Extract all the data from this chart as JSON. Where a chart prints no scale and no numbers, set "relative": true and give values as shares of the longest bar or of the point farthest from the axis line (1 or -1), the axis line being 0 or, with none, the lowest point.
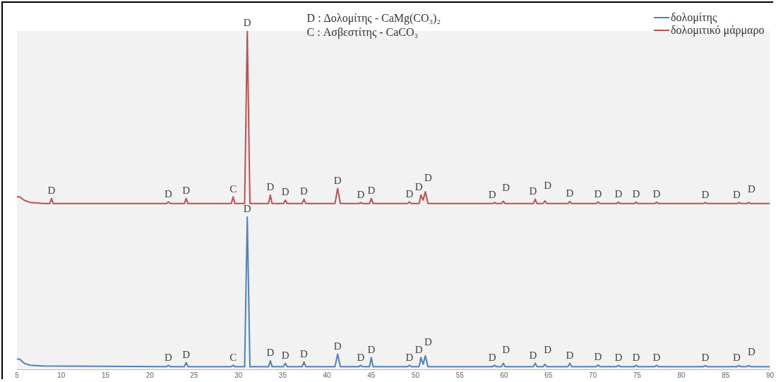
{
  "chart_data": {
    "type": "line",
    "relative": true,
    "xlim": [
      5,
      90
    ],
    "xticks": [
      5,
      10,
      15,
      20,
      25,
      30,
      35,
      40,
      45,
      50,
      55,
      60,
      65,
      70,
      75,
      80,
      85,
      90
    ],
    "tick_labels": "x",
    "grid": false,
    "legend": "top right",
    "marker": "none",
    "line_style": "solid",
    "series": [
      {
        "name": "δολομίτης",
        "color": "#4f81bd",
        "x": [
          5,
          5.3,
          5.8,
          6.5,
          8,
          21.9,
          22.1,
          22.3,
          23.9,
          24.1,
          24.3,
          29.2,
          29.4,
          29.6,
          30.7,
          31.0,
          31.3,
          33.4,
          33.6,
          33.8,
          35.1,
          35.3,
          35.5,
          37.2,
          37.4,
          37.6,
          40.9,
          41.2,
          41.5,
          43.6,
          43.8,
          44.0,
          44.8,
          45.0,
          45.2,
          49.1,
          49.3,
          49.5,
          50.4,
          50.6,
          50.85,
          51.1,
          51.4,
          58.7,
          58.9,
          59.1,
          59.7,
          59.9,
          60.1,
          63.3,
          63.5,
          63.7,
          64.4,
          64.6,
          64.8,
          67.2,
          67.4,
          67.6,
          70.4,
          70.6,
          70.8,
          72.7,
          72.9,
          73.1,
          74.7,
          74.9,
          75.1,
          77.0,
          77.2,
          77.4,
          82.5,
          82.7,
          82.9,
          86.3,
          86.5,
          86.7,
          87.4,
          87.6,
          87.8,
          90
        ],
        "values": [
          0.03,
          0.03,
          0.018,
          0.012,
          0.01,
          0.008,
          0.012,
          0.008,
          0.008,
          0.02,
          0.008,
          0.008,
          0.012,
          0.008,
          0.008,
          0.45,
          0.008,
          0.008,
          0.025,
          0.008,
          0.008,
          0.018,
          0.008,
          0.008,
          0.022,
          0.008,
          0.008,
          0.045,
          0.008,
          0.008,
          0.012,
          0.008,
          0.008,
          0.035,
          0.008,
          0.008,
          0.012,
          0.008,
          0.008,
          0.035,
          0.015,
          0.04,
          0.008,
          0.008,
          0.012,
          0.008,
          0.008,
          0.018,
          0.008,
          0.008,
          0.018,
          0.008,
          0.008,
          0.015,
          0.008,
          0.008,
          0.018,
          0.008,
          0.008,
          0.013,
          0.008,
          0.008,
          0.012,
          0.008,
          0.008,
          0.012,
          0.008,
          0.008,
          0.012,
          0.008,
          0.008,
          0.011,
          0.008,
          0.008,
          0.011,
          0.008,
          0.008,
          0.011,
          0.008,
          0.008
        ]
      },
      {
        "name": "δολομιτικό μάρμαρο",
        "color": "#c0504d",
        "x": [
          5,
          5.3,
          5.8,
          6.5,
          8,
          8.7,
          8.9,
          9.1,
          21.9,
          22.1,
          22.3,
          23.9,
          24.1,
          24.3,
          29.2,
          29.4,
          29.6,
          30.7,
          31.0,
          31.3,
          33.4,
          33.6,
          33.8,
          35.1,
          35.3,
          35.5,
          37.2,
          37.4,
          37.6,
          40.9,
          41.2,
          41.5,
          43.6,
          43.8,
          44.0,
          44.8,
          45.0,
          45.2,
          49.1,
          49.3,
          49.5,
          50.4,
          50.6,
          50.85,
          51.1,
          51.4,
          58.7,
          58.9,
          59.1,
          59.7,
          59.9,
          60.1,
          63.3,
          63.5,
          63.7,
          64.4,
          64.6,
          64.8,
          67.2,
          67.4,
          67.6,
          70.4,
          70.6,
          70.8,
          72.7,
          72.9,
          73.1,
          74.7,
          74.9,
          75.1,
          77.0,
          77.2,
          77.4,
          82.5,
          82.7,
          82.9,
          86.3,
          86.5,
          86.7,
          87.4,
          87.6,
          87.8,
          90
        ],
        "values": [
          0.51,
          0.51,
          0.5,
          0.493,
          0.49,
          0.49,
          0.505,
          0.49,
          0.49,
          0.495,
          0.49,
          0.49,
          0.505,
          0.49,
          0.49,
          0.51,
          0.49,
          0.49,
          1,
          0.49,
          0.49,
          0.515,
          0.49,
          0.49,
          0.5,
          0.49,
          0.49,
          0.503,
          0.49,
          0.49,
          0.535,
          0.49,
          0.49,
          0.493,
          0.49,
          0.49,
          0.505,
          0.49,
          0.49,
          0.495,
          0.49,
          0.49,
          0.515,
          0.5,
          0.525,
          0.49,
          0.49,
          0.493,
          0.49,
          0.49,
          0.497,
          0.49,
          0.49,
          0.503,
          0.49,
          0.49,
          0.498,
          0.49,
          0.49,
          0.496,
          0.49,
          0.49,
          0.495,
          0.49,
          0.49,
          0.494,
          0.49,
          0.49,
          0.494,
          0.49,
          0.49,
          0.494,
          0.49,
          0.49,
          0.493,
          0.49,
          0.49,
          0.493,
          0.49,
          0.49,
          0.493,
          0.49,
          0.49
        ]
      }
    ],
    "annotations": [
      "D : Δολομίτης - CaMg(CO₃)₂",
      "C : Ασβεστίτης - CaCO₃",
      {
        "text": "D",
        "x": 8.9,
        "y": 0.505
      },
      {
        "text": "D",
        "x": 22.1,
        "y": 0.495
      },
      {
        "text": "D",
        "x": 24.1,
        "y": 0.505
      },
      {
        "text": "C",
        "x": 29.4,
        "y": 0.51
      },
      {
        "text": "D",
        "x": 31.0,
        "y": 1
      },
      {
        "text": "D",
        "x": 33.6,
        "y": 0.515
      },
      {
        "text": "D",
        "x": 35.3,
        "y": 0.5
      },
      {
        "text": "D",
        "x": 37.4,
        "y": 0.503
      },
      {
        "text": "D",
        "x": 41.2,
        "y": 0.535
      },
      {
        "text": "D",
        "x": 43.8,
        "y": 0.493
      },
      {
        "text": "D",
        "x": 45.0,
        "y": 0.505
      },
      {
        "text": "D",
        "x": 49.3,
        "y": 0.495
      },
      {
        "text": "D",
        "x": 50.6,
        "y": 0.515
      },
      {
        "text": "D",
        "x": 51.1,
        "y": 0.525
      },
      {
        "text": "D",
        "x": 58.9,
        "y": 0.493
      },
      {
        "text": "D",
        "x": 59.9,
        "y": 0.497
      },
      {
        "text": "D",
        "x": 63.5,
        "y": 0.503
      },
      {
        "text": "D",
        "x": 64.6,
        "y": 0.498
      },
      {
        "text": "D",
        "x": 67.4,
        "y": 0.496
      },
      {
        "text": "D",
        "x": 70.6,
        "y": 0.495
      },
      {
        "text": "D",
        "x": 72.9,
        "y": 0.494
      },
      {
        "text": "D",
        "x": 74.9,
        "y": 0.494
      },
      {
        "text": "D",
        "x": 77.2,
        "y": 0.494
      },
      {
        "text": "D",
        "x": 82.7,
        "y": 0.493
      },
      {
        "text": "D",
        "x": 86.5,
        "y": 0.493
      },
      {
        "text": "D",
        "x": 87.6,
        "y": 0.493
      },
      {
        "text": "D",
        "x": 22.1,
        "y": 0.012
      },
      {
        "text": "D",
        "x": 24.1,
        "y": 0.02
      },
      {
        "text": "C",
        "x": 29.4,
        "y": 0.012
      },
      {
        "text": "D",
        "x": 31.0,
        "y": 0.45
      },
      {
        "text": "D",
        "x": 33.6,
        "y": 0.025
      },
      {
        "text": "D",
        "x": 35.3,
        "y": 0.018
      },
      {
        "text": "D",
        "x": 37.4,
        "y": 0.022
      },
      {
        "text": "D",
        "x": 41.2,
        "y": 0.045
      },
      {
        "text": "D",
        "x": 43.8,
        "y": 0.012
      },
      {
        "text": "D",
        "x": 45.0,
        "y": 0.035
      },
      {
        "text": "D",
        "x": 49.3,
        "y": 0.012
      },
      {
        "text": "D",
        "x": 50.6,
        "y": 0.035
      },
      {
        "text": "D",
        "x": 51.1,
        "y": 0.04
      },
      {
        "text": "D",
        "x": 58.9,
        "y": 0.012
      },
      {
        "text": "D",
        "x": 59.9,
        "y": 0.018
      },
      {
        "text": "D",
        "x": 63.5,
        "y": 0.018
      },
      {
        "text": "D",
        "x": 64.6,
        "y": 0.015
      },
      {
        "text": "D",
        "x": 67.4,
        "y": 0.018
      },
      {
        "text": "D",
        "x": 70.6,
        "y": 0.013
      },
      {
        "text": "D",
        "x": 72.9,
        "y": 0.012
      },
      {
        "text": "D",
        "x": 74.9,
        "y": 0.012
      },
      {
        "text": "D",
        "x": 77.2,
        "y": 0.012
      },
      {
        "text": "D",
        "x": 82.7,
        "y": 0.011
      },
      {
        "text": "D",
        "x": 86.5,
        "y": 0.011
      },
      {
        "text": "D",
        "x": 87.6,
        "y": 0.011
      }
    ]
  }
}
